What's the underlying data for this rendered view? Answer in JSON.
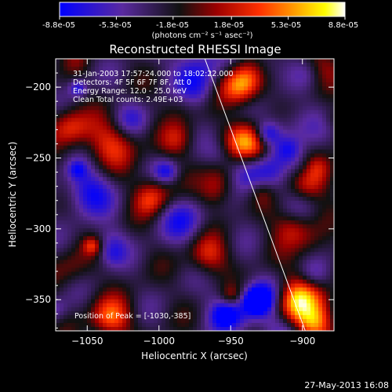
{
  "colorbar": {
    "tick_labels": [
      "-8.8e-05",
      "-5.3e-05",
      "-1.8e-05",
      "1.8e-05",
      "5.3e-05",
      "8.8e-05"
    ],
    "tick_values": [
      -8.8e-05,
      -5.3e-05,
      -1.8e-05,
      1.8e-05,
      5.3e-05,
      8.8e-05
    ],
    "range": [
      -8.8e-05,
      8.8e-05
    ],
    "units_label": "(photons cm⁻² s⁻¹ asec⁻²)",
    "colors": [
      "#0000ff",
      "#5a2aa0",
      "#111111",
      "#9c0000",
      "#ff3000",
      "#ff9a00",
      "#ffff00",
      "#ffffff"
    ]
  },
  "chart_data": {
    "type": "heatmap",
    "title": "Reconstructed RHESSI Image",
    "xlabel": "Heliocentric X (arcsec)",
    "ylabel": "Heliocentric Y (arcsec)",
    "xlim": [
      -1072,
      -878
    ],
    "ylim": [
      -372,
      -180
    ],
    "x_ticks": [
      -1050,
      -1000,
      -950,
      -900
    ],
    "y_ticks": [
      -350,
      -300,
      -250,
      -200
    ],
    "x_tick_labels": [
      "−1050",
      "−1000",
      "−950",
      "−900"
    ],
    "y_tick_labels": [
      "−350",
      "−300",
      "−250",
      "−200"
    ],
    "annotations": [
      "31-Jan-2003 17:57:24.000 to 18:02:22.000",
      "Detectors: 4F 5F 6F 7F 8F, Att 0",
      "Energy Range: 12.0 - 25.0 keV",
      "Clean     Total counts: 2.49E+03"
    ],
    "peak_label": "Position of Peak = [-1030,-385]",
    "peak_position": [
      -1030,
      -385
    ],
    "limb_line": [
      [
        -968,
        -180
      ],
      [
        -898,
        -372
      ]
    ],
    "grid": false
  },
  "footer": {
    "timestamp": "27-May-2013 16:08"
  }
}
